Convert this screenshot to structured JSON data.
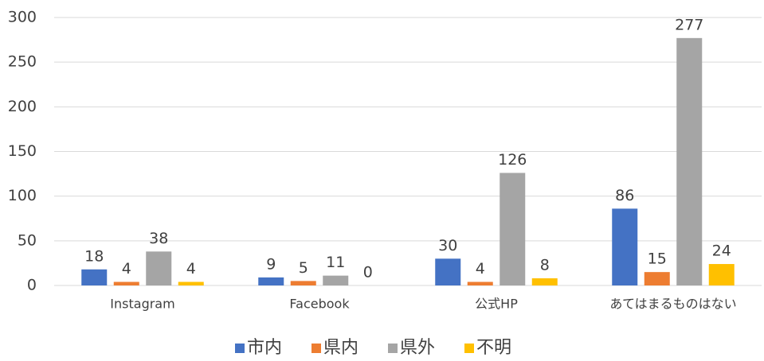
{
  "chart_data": {
    "type": "bar",
    "categories": [
      "Instagram",
      "Facebook",
      "公式HP",
      "あてはまるものはない"
    ],
    "series": [
      {
        "name": "市内",
        "color": "#4472c4",
        "values": [
          18,
          9,
          30,
          86
        ]
      },
      {
        "name": "県内",
        "color": "#ed7d31",
        "values": [
          4,
          5,
          4,
          15
        ]
      },
      {
        "name": "県外",
        "color": "#a5a5a5",
        "values": [
          38,
          11,
          126,
          277
        ]
      },
      {
        "name": "不明",
        "color": "#ffc000",
        "values": [
          4,
          0,
          8,
          24
        ]
      }
    ],
    "ylim": [
      0,
      300
    ],
    "yticks": [
      0,
      50,
      100,
      150,
      200,
      250,
      300
    ],
    "grid": true,
    "legend": "bottom"
  }
}
